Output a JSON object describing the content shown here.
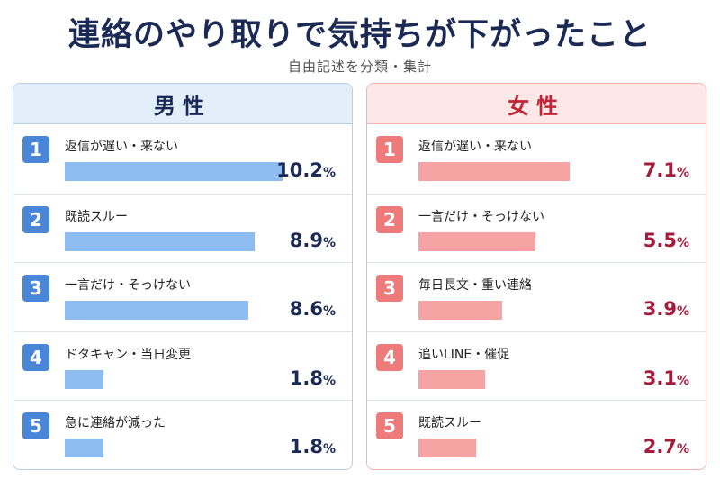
{
  "title": "連絡のやり取りで気持ちが下がったこと",
  "subtitle": "自由記述を分類・集計",
  "colors": {
    "male_accent": "#4a86d8",
    "male_bar": "#8fbcf0",
    "female_accent": "#ee7a7a",
    "female_bar": "#f5a3a3"
  },
  "chart_data": [
    {
      "type": "bar",
      "orientation": "horizontal",
      "title": "男性",
      "unit": "%",
      "xlim": [
        0,
        10.2
      ],
      "categories": [
        "返信が遅い・来ない",
        "既読スルー",
        "一言だけ・そっけない",
        "ドタキャン・当日変更",
        "急に連絡が減った"
      ],
      "ranks": [
        "1",
        "2",
        "3",
        "4",
        "5"
      ],
      "values": [
        10.2,
        8.9,
        8.6,
        1.8,
        1.8
      ],
      "value_labels": [
        "10.2",
        "8.9",
        "8.6",
        "1.8",
        "1.8"
      ]
    },
    {
      "type": "bar",
      "orientation": "horizontal",
      "title": "女性",
      "unit": "%",
      "xlim": [
        0,
        10.2
      ],
      "categories": [
        "返信が遅い・来ない",
        "一言だけ・そっけない",
        "毎日長文・重い連絡",
        "追いLINE・催促",
        "既読スルー"
      ],
      "ranks": [
        "1",
        "2",
        "3",
        "4",
        "5"
      ],
      "values": [
        7.1,
        5.5,
        3.9,
        3.1,
        2.7
      ],
      "value_labels": [
        "7.1",
        "5.5",
        "3.9",
        "3.1",
        "2.7"
      ]
    }
  ]
}
